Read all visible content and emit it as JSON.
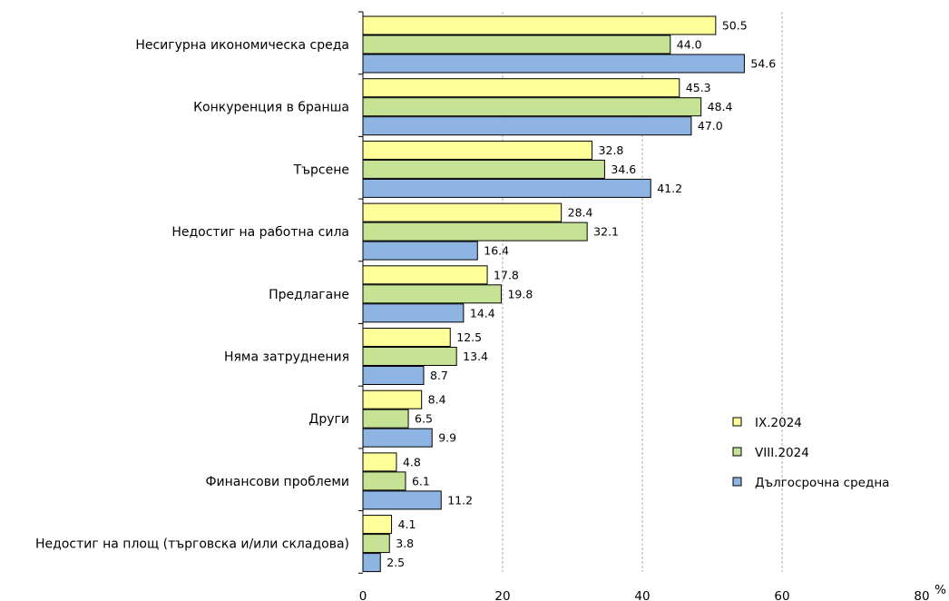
{
  "chart_data": {
    "type": "bar",
    "orientation": "horizontal",
    "categories": [
      "Несигурна икономическа среда",
      "Конкуренция в бранша",
      "Търсене",
      "Недостиг на работна сила",
      "Предлагане",
      "Няма затруднения",
      "Други",
      "Финансови проблеми",
      "Недостиг на площ (търговска и/или складова)"
    ],
    "series": [
      {
        "name": "IX.2024",
        "color": "#ffff99",
        "values": [
          50.5,
          45.3,
          32.8,
          28.4,
          17.8,
          12.5,
          8.4,
          4.8,
          4.1
        ]
      },
      {
        "name": "VIII.2024",
        "color": "#c6e295",
        "values": [
          44.0,
          48.4,
          34.6,
          32.1,
          19.8,
          13.4,
          6.5,
          6.1,
          3.8
        ]
      },
      {
        "name": "Дългосрочна средна",
        "color": "#8eb4e3",
        "values": [
          54.6,
          47.0,
          41.2,
          16.4,
          14.4,
          8.7,
          9.9,
          11.2,
          2.5
        ]
      }
    ],
    "xlim": [
      0,
      80
    ],
    "xticks": [
      "0",
      "20",
      "40",
      "60",
      "80"
    ],
    "unit": "%",
    "grid": "vertical dashed",
    "legend_position": "right"
  }
}
